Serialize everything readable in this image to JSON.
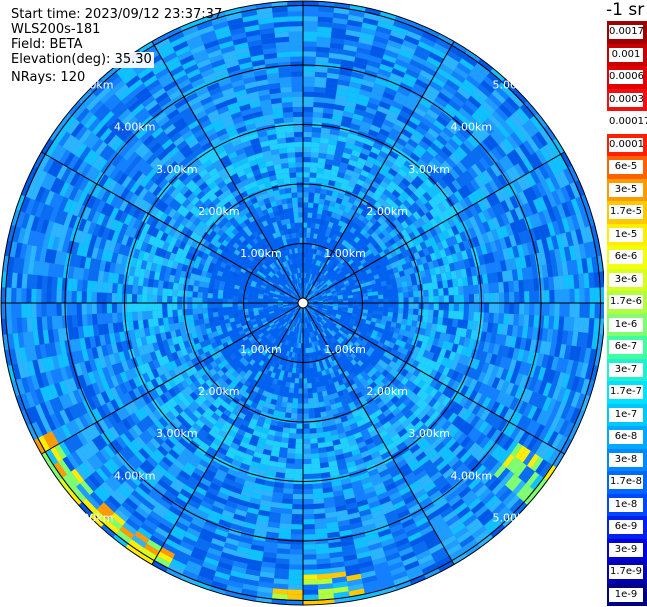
{
  "info": {
    "start_time": "Start time: 2023/09/12 23:37:37",
    "device": "WLS200s-181",
    "field": "Field: BETA",
    "elevation": "Elevation(deg): 35.30",
    "nrays": "NRays: 120"
  },
  "legend_title": "-1 sr",
  "chart_data": {
    "type": "heatmap",
    "subtype": "polar-ppi",
    "field": "BETA",
    "elevation_deg": 35.3,
    "n_rays": 120,
    "range_rings_km": [
      1,
      2,
      3,
      4,
      5
    ],
    "ring_labels": [
      "1.00km",
      "2.00km",
      "3.00km",
      "4.00km",
      "5.00km"
    ],
    "radials_deg": [
      0,
      30,
      60,
      90,
      120,
      150,
      180,
      210,
      240,
      270,
      300,
      330
    ],
    "colorbar": [
      {
        "label": "0.0017",
        "color": "#a00000"
      },
      {
        "label": "0.001",
        "color": "#c80000"
      },
      {
        "label": "0.0006",
        "color": "#e00000"
      },
      {
        "label": "0.0003",
        "color": "#f01010"
      },
      {
        "label": "0.00017",
        "color": "#ffffff"
      },
      {
        "label": "0.0001",
        "color": "#ff2000"
      },
      {
        "label": "6e-5",
        "color": "#ff6000"
      },
      {
        "label": "3e-5",
        "color": "#ff9a00"
      },
      {
        "label": "1.7e-5",
        "color": "#ffc800"
      },
      {
        "label": "1e-5",
        "color": "#ffee00"
      },
      {
        "label": "6e-6",
        "color": "#f4ff10"
      },
      {
        "label": "3e-6",
        "color": "#d8ff20"
      },
      {
        "label": "1.7e-6",
        "color": "#b0ff40"
      },
      {
        "label": "1e-6",
        "color": "#80ff70"
      },
      {
        "label": "6e-7",
        "color": "#40ffa0"
      },
      {
        "label": "3e-7",
        "color": "#20f0d0"
      },
      {
        "label": "1.7e-7",
        "color": "#00e0ff"
      },
      {
        "label": "1e-7",
        "color": "#00c8ff"
      },
      {
        "label": "6e-8",
        "color": "#00a8ff"
      },
      {
        "label": "3e-8",
        "color": "#0088ff"
      },
      {
        "label": "1.7e-8",
        "color": "#0068ff"
      },
      {
        "label": "1e-8",
        "color": "#0048ff"
      },
      {
        "label": "6e-9",
        "color": "#0020f0"
      },
      {
        "label": "3e-9",
        "color": "#0000d8"
      },
      {
        "label": "1.7e-9",
        "color": "#0000b0"
      },
      {
        "label": "1e-9",
        "color": "#000080"
      }
    ]
  }
}
